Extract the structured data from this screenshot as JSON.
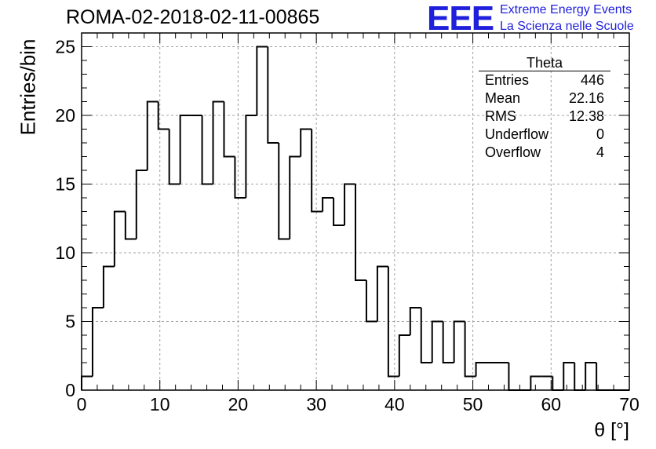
{
  "header": {
    "run_title": "ROMA-02-2018-02-11-00865",
    "logo_mark": "EEE",
    "logo_line1": "Extreme Energy Events",
    "logo_line2": "La Scienza nelle Scuole"
  },
  "stats_box": {
    "title": "Theta",
    "rows": [
      {
        "label": "Entries",
        "value": "446"
      },
      {
        "label": "Mean",
        "value": "22.16"
      },
      {
        "label": "RMS",
        "value": "12.38"
      },
      {
        "label": "Underflow",
        "value": "0"
      },
      {
        "label": "Overflow",
        "value": "4"
      }
    ]
  },
  "chart_data": {
    "type": "histogram",
    "title": "ROMA-02-2018-02-11-00865",
    "xlabel": "θ [°]",
    "ylabel": "Entries/bin",
    "xlim": [
      0,
      70
    ],
    "ylim": [
      0,
      26
    ],
    "bin_width": 1.4,
    "x_ticks": [
      0,
      10,
      20,
      30,
      40,
      50,
      60,
      70
    ],
    "y_ticks": [
      0,
      5,
      10,
      15,
      20,
      25
    ],
    "grid": true,
    "bin_edges_start": 0,
    "values": [
      1,
      6,
      9,
      13,
      11,
      16,
      21,
      19,
      15,
      20,
      20,
      15,
      21,
      17,
      14,
      20,
      25,
      18,
      11,
      17,
      19,
      13,
      14,
      12,
      15,
      8,
      5,
      9,
      1,
      4,
      6,
      2,
      5,
      2,
      5,
      1,
      2,
      2,
      2,
      0,
      0,
      1,
      1,
      0,
      2,
      0,
      2,
      0,
      0,
      0
    ]
  }
}
